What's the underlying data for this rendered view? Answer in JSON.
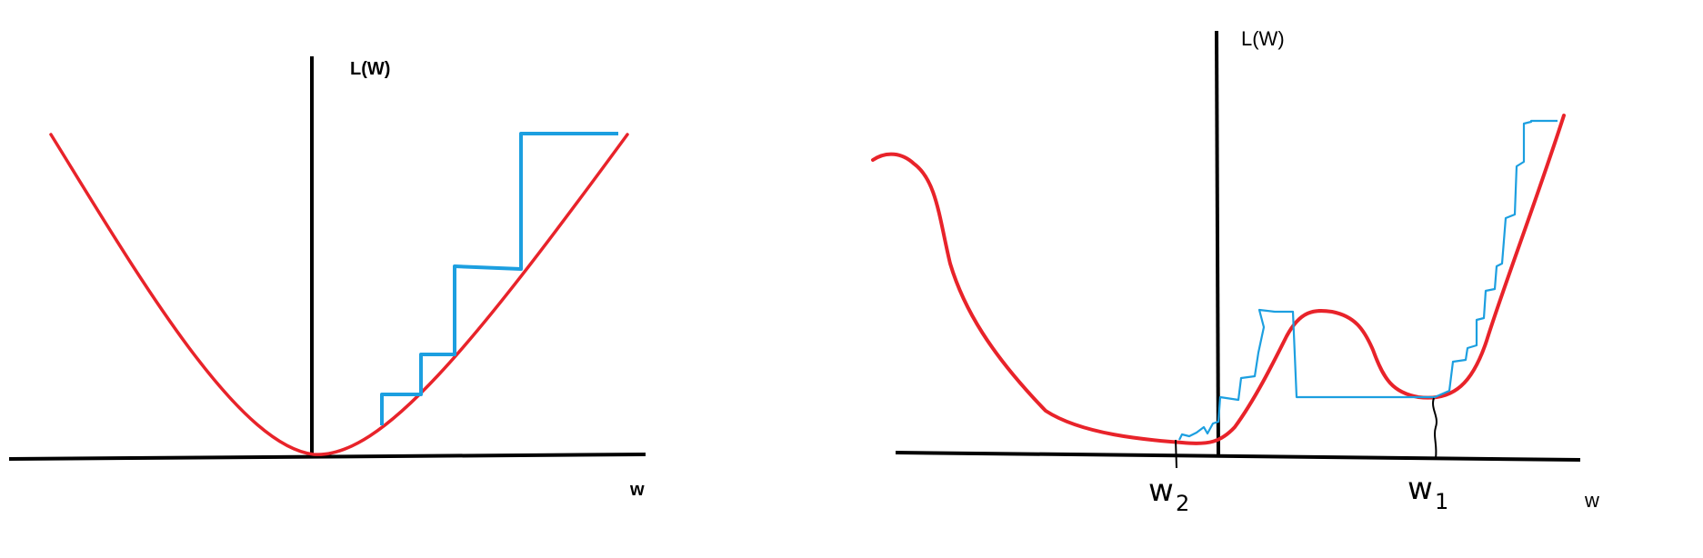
{
  "left_panel": {
    "y_axis_label": "L(W)",
    "x_axis_label": "w"
  },
  "right_panel": {
    "y_axis_label": "L(W)",
    "x_axis_label": "w",
    "marker_w2": {
      "base": "w",
      "sub": "2"
    },
    "marker_w1": {
      "base": "w",
      "sub": "1"
    }
  },
  "colors": {
    "axis": "#000000",
    "loss_curve": "#e8232a",
    "descent_steps": "#1c9fe0"
  }
}
